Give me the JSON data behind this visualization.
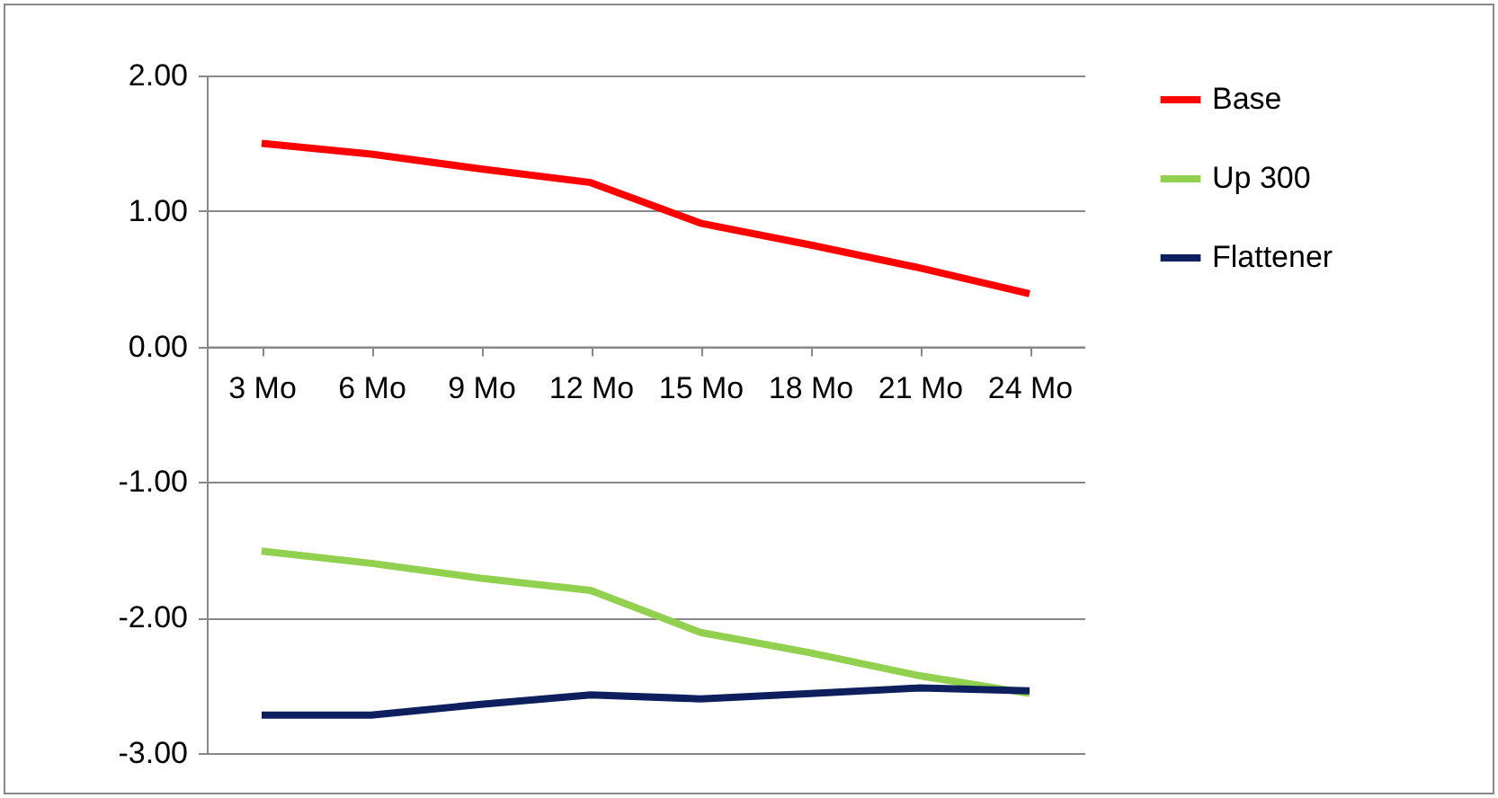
{
  "chart_data": {
    "type": "line",
    "categories": [
      "3 Mo",
      "6 Mo",
      "9 Mo",
      "12 Mo",
      "15 Mo",
      "18 Mo",
      "21 Mo",
      "24 Mo"
    ],
    "series": [
      {
        "name": "Base",
        "color": "#ff0000",
        "values": [
          1.5,
          1.42,
          1.31,
          1.21,
          0.91,
          0.75,
          0.58,
          0.39
        ]
      },
      {
        "name": "Up 300",
        "color": "#92d050",
        "values": [
          -1.51,
          -1.6,
          -1.71,
          -1.8,
          -2.11,
          -2.26,
          -2.43,
          -2.56
        ]
      },
      {
        "name": "Flattener",
        "color": "#0d1f5c",
        "values": [
          -2.72,
          -2.72,
          -2.64,
          -2.57,
          -2.6,
          -2.56,
          -2.52,
          -2.54
        ]
      }
    ],
    "ylim": [
      -3,
      2
    ],
    "yticks": [
      {
        "value": -3,
        "label": "-3.00"
      },
      {
        "value": -2,
        "label": "-2.00"
      },
      {
        "value": -1,
        "label": "-1.00"
      },
      {
        "value": 0,
        "label": "0.00"
      },
      {
        "value": 1,
        "label": "1.00"
      },
      {
        "value": 2,
        "label": "2.00"
      }
    ],
    "grid": "y",
    "legend": "right"
  }
}
